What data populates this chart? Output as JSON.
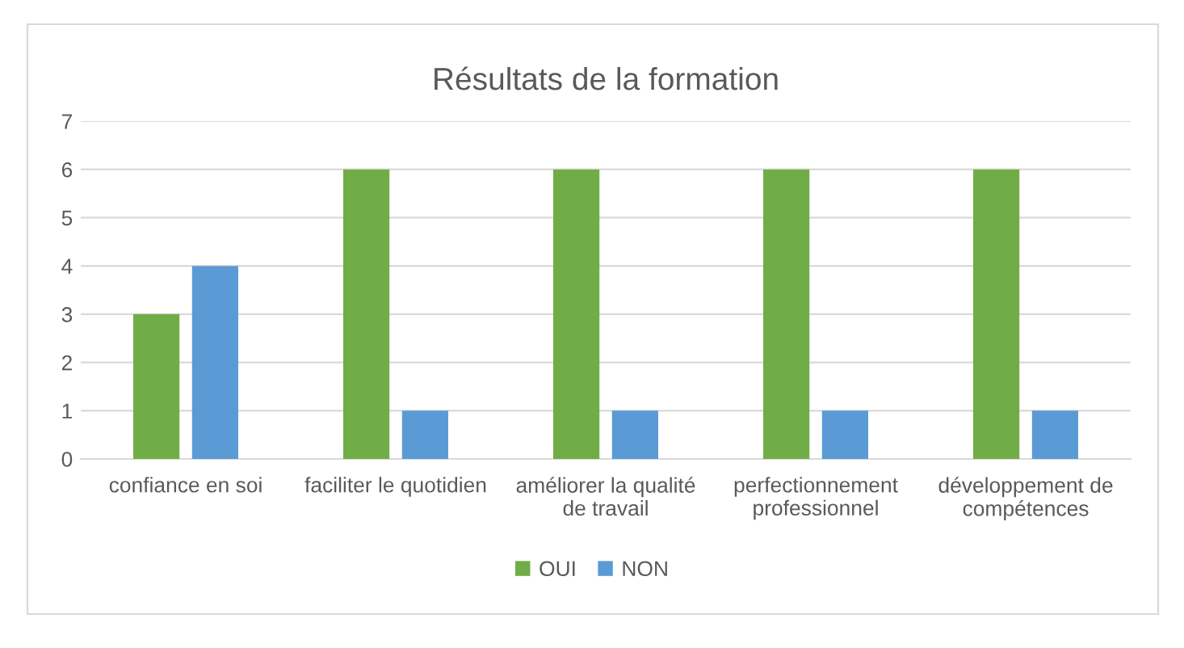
{
  "chart_data": {
    "type": "bar",
    "title": "Résultats de la formation",
    "categories": [
      "confiance en soi",
      "faciliter le quotidien",
      "améliorer la qualité de travail",
      "perfectionnement professionnel",
      "développement de compétences"
    ],
    "series": [
      {
        "name": "OUI",
        "color": "#70ad47",
        "values": [
          3,
          6,
          6,
          6,
          6
        ]
      },
      {
        "name": "NON",
        "color": "#5b9bd5",
        "values": [
          4,
          1,
          1,
          1,
          1
        ]
      }
    ],
    "ylim": [
      0,
      7
    ],
    "yticks": [
      0,
      1,
      2,
      3,
      4,
      5,
      6,
      7
    ],
    "grid": "y",
    "legend": "bottom"
  }
}
